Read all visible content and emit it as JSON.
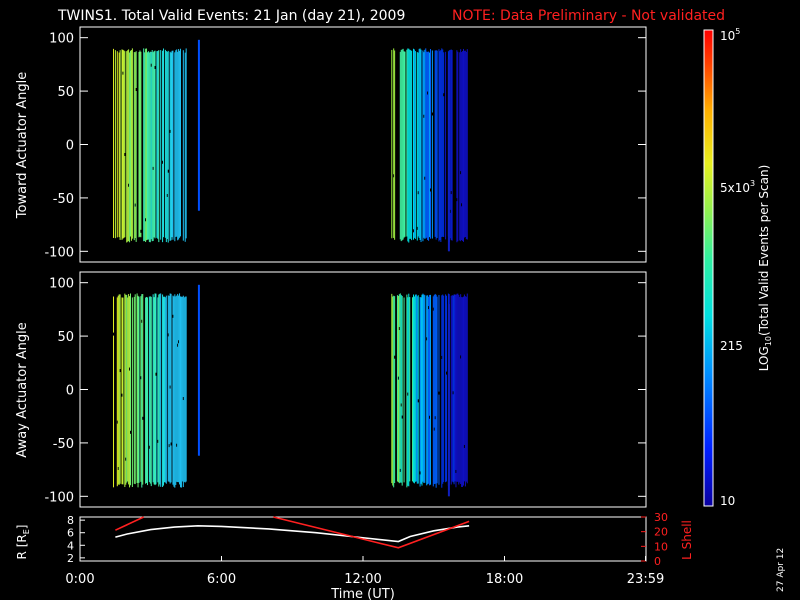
{
  "header": {
    "title": "TWINS1. Total Valid Events: 21 Jan (day  21), 2009",
    "note": "NOTE: Data Preliminary - Not validated"
  },
  "footer_date": "27 Apr 12",
  "chart_data": [
    {
      "type": "heatmap",
      "ylabel": "Toward Actuator Angle",
      "xlabel": "",
      "xlim": [
        0,
        24
      ],
      "ylim": [
        -110,
        110
      ],
      "yticks": [
        -100,
        -50,
        0,
        50,
        100
      ],
      "note": "angle coverage roughly -90 to 90 deg; data in two time blocks"
    },
    {
      "type": "heatmap",
      "ylabel": "Away Actuator Angle",
      "xlabel": "",
      "xlim": [
        0,
        24
      ],
      "ylim": [
        -110,
        110
      ],
      "yticks": [
        -100,
        -50,
        0,
        50,
        100
      ]
    },
    {
      "type": "line",
      "xlabel": "Time (UT)",
      "xlim": [
        0,
        24
      ],
      "xticks": [
        "0:00",
        "6:00",
        "12:00",
        "18:00",
        "23:59"
      ],
      "xtick_values": [
        0,
        6,
        12,
        18,
        23.98
      ],
      "left_axis": {
        "label": "R [R",
        "label_sub": "E",
        "ylim": [
          1.5,
          8.5
        ],
        "ticks": [
          2,
          4,
          6,
          8
        ]
      },
      "right_axis": {
        "label": "L Shell",
        "ylim": [
          0,
          30
        ],
        "ticks": [
          0,
          10,
          20,
          30
        ],
        "color": "#ff2020"
      },
      "series": [
        {
          "axis": "left",
          "color": "#ffffff",
          "x": [
            1.5,
            2.0,
            3.0,
            4.0,
            5.0,
            6.0,
            8.0,
            10.0,
            12.0,
            13.5,
            14.0,
            15.0,
            16.0,
            16.5
          ],
          "y": [
            5.3,
            5.8,
            6.5,
            6.9,
            7.1,
            7.0,
            6.6,
            6.0,
            5.2,
            4.6,
            5.4,
            6.3,
            6.9,
            7.1
          ]
        },
        {
          "axis": "right",
          "color": "#ff2020",
          "x": [
            1.5,
            2.7
          ],
          "y": [
            21,
            30
          ]
        },
        {
          "axis": "right",
          "color": "#ff2020",
          "x": [
            8.2,
            13.5,
            16.5
          ],
          "y": [
            30,
            9,
            27
          ]
        }
      ]
    }
  ],
  "colorbar": {
    "label": "LOG",
    "label_sub": "10",
    "label_rest": "(Total Valid  Events per Scan)",
    "top_mantissa": "10",
    "top_exp": "5",
    "mid_mantissa": "5x10",
    "mid_exp": "3",
    "low": "215",
    "bottom": "10",
    "scale": "log",
    "range": [
      10,
      100000
    ]
  },
  "colors": {
    "background": "#000000",
    "axes": "#ffffff",
    "note": "#ff2020",
    "l_shell": "#ff2020"
  }
}
